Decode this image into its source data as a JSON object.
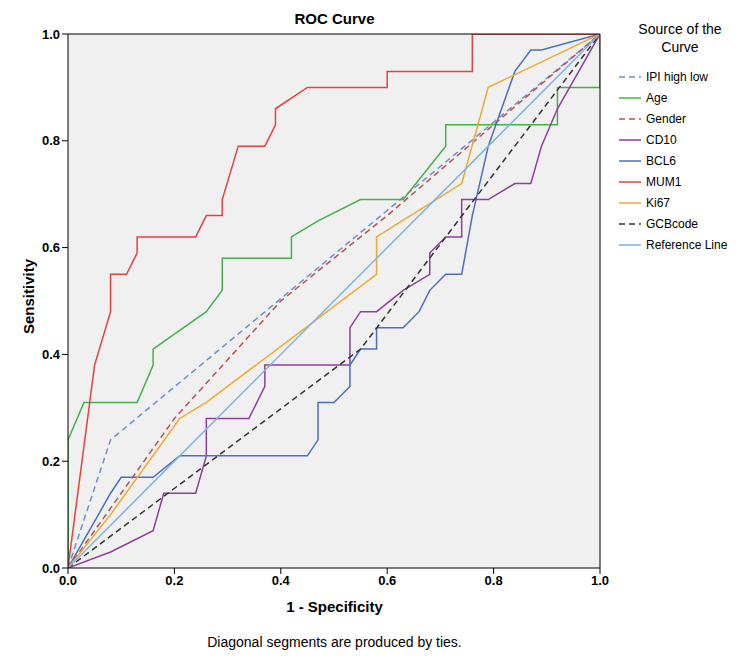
{
  "chart_data": {
    "type": "line",
    "title": "ROC Curve",
    "x_label": "1 - Specificity",
    "y_label": "Sensitivity",
    "legend_title": "Source of the Curve",
    "annotations": [
      "Diagonal segments are produced by ties."
    ],
    "xlim": [
      0,
      1
    ],
    "ylim": [
      0,
      1
    ],
    "xticks": [
      {
        "value": 0,
        "label": "0.0"
      },
      {
        "value": 0.2,
        "label": "0.2"
      },
      {
        "value": 0.4,
        "label": "0.4"
      },
      {
        "value": 0.6,
        "label": "0.6"
      },
      {
        "value": 0.8,
        "label": "0.8"
      },
      {
        "value": 1,
        "label": "1.0"
      }
    ],
    "yticks": [
      {
        "value": 0,
        "label": "0.0"
      },
      {
        "value": 0.2,
        "label": "0.2"
      },
      {
        "value": 0.4,
        "label": "0.4"
      },
      {
        "value": 0.6,
        "label": "0.6"
      },
      {
        "value": 0.8,
        "label": "0.8"
      },
      {
        "value": 1,
        "label": "1.0"
      }
    ],
    "grid": false,
    "legend": "right",
    "series": [
      {
        "name": "IPI high low",
        "color": "#6b8fd0",
        "line_style": "dashed",
        "x": [
          0,
          0.08,
          1
        ],
        "values": [
          0,
          0.24,
          1
        ]
      },
      {
        "name": "Age",
        "color": "#43b04a",
        "line_style": "solid",
        "x": [
          0,
          0,
          0.03,
          0.13,
          0.16,
          0.16,
          0.26,
          0.29,
          0.29,
          0.42,
          0.42,
          0.47,
          0.55,
          0.63,
          0.71,
          0.71,
          0.92,
          0.92,
          1,
          1
        ],
        "values": [
          0,
          0.24,
          0.31,
          0.31,
          0.38,
          0.41,
          0.48,
          0.52,
          0.58,
          0.58,
          0.62,
          0.65,
          0.69,
          0.69,
          0.79,
          0.83,
          0.83,
          0.9,
          0.9,
          1
        ]
      },
      {
        "name": "Gender",
        "color": "#c0504d",
        "line_style": "dashed",
        "x": [
          0,
          0.2,
          0.4,
          0.6,
          0.8,
          1
        ],
        "values": [
          0,
          0.28,
          0.5,
          0.66,
          0.83,
          1
        ]
      },
      {
        "name": "CD10",
        "color": "#8e3f9a",
        "line_style": "solid",
        "x": [
          0,
          0.08,
          0.16,
          0.18,
          0.24,
          0.26,
          0.26,
          0.34,
          0.37,
          0.37,
          0.53,
          0.53,
          0.55,
          0.58,
          0.63,
          0.68,
          0.68,
          0.71,
          0.74,
          0.74,
          0.79,
          0.84,
          0.87,
          0.89,
          0.92,
          1
        ],
        "values": [
          0,
          0.03,
          0.07,
          0.14,
          0.14,
          0.21,
          0.28,
          0.28,
          0.34,
          0.38,
          0.38,
          0.45,
          0.48,
          0.48,
          0.52,
          0.55,
          0.59,
          0.62,
          0.62,
          0.69,
          0.69,
          0.72,
          0.72,
          0.79,
          0.86,
          1
        ]
      },
      {
        "name": "BCL6",
        "color": "#4a6fbf",
        "line_style": "solid",
        "x": [
          0,
          0.08,
          0.1,
          0.16,
          0.21,
          0.45,
          0.47,
          0.47,
          0.5,
          0.53,
          0.53,
          0.55,
          0.58,
          0.58,
          0.63,
          0.66,
          0.68,
          0.71,
          0.74,
          0.76,
          0.79,
          0.84,
          0.87,
          0.89,
          1
        ],
        "values": [
          0,
          0.14,
          0.17,
          0.17,
          0.21,
          0.21,
          0.24,
          0.31,
          0.31,
          0.34,
          0.38,
          0.41,
          0.41,
          0.45,
          0.45,
          0.48,
          0.52,
          0.55,
          0.55,
          0.66,
          0.79,
          0.93,
          0.97,
          0.97,
          1
        ]
      },
      {
        "name": "MUM1",
        "color": "#e8403a",
        "line_style": "solid",
        "x": [
          0,
          0.05,
          0.08,
          0.08,
          0.11,
          0.13,
          0.13,
          0.24,
          0.26,
          0.29,
          0.29,
          0.32,
          0.37,
          0.39,
          0.39,
          0.45,
          0.6,
          0.6,
          0.76,
          0.76,
          1
        ],
        "values": [
          0,
          0.38,
          0.48,
          0.55,
          0.55,
          0.59,
          0.62,
          0.62,
          0.66,
          0.66,
          0.69,
          0.79,
          0.79,
          0.83,
          0.86,
          0.9,
          0.9,
          0.93,
          0.93,
          1,
          1
        ]
      },
      {
        "name": "Ki67",
        "color": "#f0a830",
        "line_style": "solid",
        "x": [
          0,
          0.08,
          0.21,
          0.26,
          0.58,
          0.58,
          0.74,
          0.79,
          1
        ],
        "values": [
          0,
          0.1,
          0.28,
          0.31,
          0.55,
          0.62,
          0.72,
          0.9,
          1
        ]
      },
      {
        "name": "GCBcode",
        "color": "#333333",
        "line_style": "dashed",
        "x": [
          0,
          0.55,
          1
        ],
        "values": [
          0,
          0.41,
          1
        ]
      },
      {
        "name": "Reference Line",
        "color": "#7fb2e5",
        "line_style": "solid",
        "x": [
          0,
          1
        ],
        "values": [
          0,
          1
        ]
      }
    ]
  }
}
